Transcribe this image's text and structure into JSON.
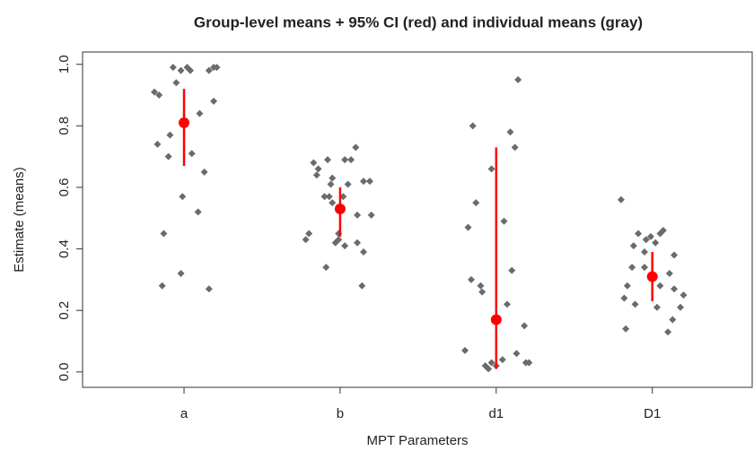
{
  "chart_data": {
    "type": "scatter",
    "title": "Group-level means + 95% CI (red) and individual means (gray)",
    "x_label": "MPT Parameters",
    "y_label": "Estimate (means)",
    "categories": [
      "a",
      "b",
      "d1",
      "D1"
    ],
    "xlim": [
      0.35,
      4.64
    ],
    "ylim": [
      -0.05,
      1.04
    ],
    "yticks": [
      {
        "value": 0,
        "label": "0.0"
      },
      0.2,
      0.4,
      0.6,
      0.8,
      {
        "value": 1,
        "label": "1.0"
      }
    ],
    "series": [
      {
        "color": "#6b6b6b",
        "x": [
          0.93,
          0.98,
          1.02,
          1.04,
          0.95,
          1.16,
          1.19,
          1.21,
          0.81,
          0.84,
          1.19,
          1.1,
          0.83,
          0.91,
          0.9,
          1.05,
          1.13,
          0.99,
          1.09,
          0.87,
          0.98,
          1.16,
          0.86,
          1.83,
          1.86,
          1.92,
          2.03,
          2.07,
          2.1,
          1.85,
          1.95,
          1.94,
          2.15,
          2.19,
          1.9,
          1.93,
          2.02,
          2.05,
          1.95,
          2.11,
          2.2,
          1.8,
          1.78,
          1.99,
          1.97,
          1.99,
          2.11,
          2.03,
          2.15,
          1.91,
          2.14,
          2.85,
          3.14,
          3.09,
          3.12,
          2.97,
          2.87,
          3.05,
          2.82,
          3.1,
          2.84,
          2.9,
          2.91,
          3.07,
          3.18,
          2.8,
          2.93,
          2.95,
          2.97,
          3.0,
          3.13,
          3.19,
          3.21,
          3.04,
          3.8,
          3.91,
          3.96,
          3.99,
          4.05,
          4.07,
          4.02,
          3.88,
          3.95,
          4.14,
          3.95,
          3.87,
          4.11,
          4.05,
          3.84,
          4.14,
          3.82,
          4.2,
          3.89,
          4.03,
          4.18,
          4.13,
          3.83,
          4.1
        ],
        "y": [
          0.99,
          0.98,
          0.99,
          0.98,
          0.94,
          0.98,
          0.99,
          0.99,
          0.91,
          0.9,
          0.88,
          0.84,
          0.74,
          0.77,
          0.7,
          0.71,
          0.65,
          0.57,
          0.52,
          0.45,
          0.32,
          0.27,
          0.28,
          0.68,
          0.66,
          0.69,
          0.69,
          0.69,
          0.73,
          0.64,
          0.63,
          0.61,
          0.62,
          0.62,
          0.57,
          0.57,
          0.57,
          0.61,
          0.55,
          0.51,
          0.51,
          0.45,
          0.43,
          0.45,
          0.42,
          0.43,
          0.42,
          0.41,
          0.39,
          0.34,
          0.28,
          0.8,
          0.95,
          0.78,
          0.73,
          0.66,
          0.55,
          0.49,
          0.47,
          0.33,
          0.3,
          0.28,
          0.26,
          0.22,
          0.15,
          0.07,
          0.02,
          0.01,
          0.03,
          0.02,
          0.06,
          0.03,
          0.03,
          0.04,
          0.56,
          0.45,
          0.43,
          0.44,
          0.45,
          0.46,
          0.42,
          0.41,
          0.39,
          0.38,
          0.34,
          0.34,
          0.32,
          0.28,
          0.28,
          0.27,
          0.24,
          0.25,
          0.22,
          0.21,
          0.21,
          0.17,
          0.14,
          0.13
        ]
      }
    ],
    "group_means": {
      "color": "#ff0000",
      "values": [
        0.81,
        0.53,
        0.17,
        0.31
      ],
      "ci_low": [
        0.67,
        0.44,
        0.01,
        0.23
      ],
      "ci_high": [
        0.92,
        0.6,
        0.73,
        0.39
      ]
    }
  }
}
